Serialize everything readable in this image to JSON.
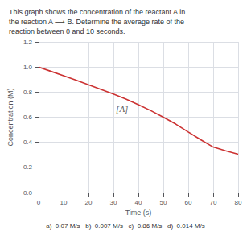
{
  "chart_data": {
    "type": "line",
    "title": "This graph shows the concentration of the reactant A in\nthe reaction A ⟶ B. Determine the average rate of the\nreaction between 0 and 10 seconds.",
    "footer": "a)  0.07 M/s   b)  0.007 M/s   c)  0.86 M/s   d)  0.014 M/s",
    "xlabel": "Time (s)",
    "ylabel": "Concentration (M)",
    "x": [
      0,
      5,
      10,
      15,
      20,
      25,
      30,
      35,
      40,
      45,
      50,
      55,
      60,
      65,
      70,
      75,
      80
    ],
    "values": [
      1.0,
      0.965,
      0.93,
      0.895,
      0.858,
      0.822,
      0.784,
      0.745,
      0.7,
      0.652,
      0.6,
      0.545,
      0.482,
      0.42,
      0.362,
      0.332,
      0.305
    ],
    "color": "#cc3333",
    "xlim": [
      0,
      80
    ],
    "ylim": [
      0,
      1.2
    ],
    "xticks": [
      0,
      10,
      20,
      30,
      40,
      50,
      60,
      70,
      80
    ],
    "yticks": [
      {
        "value": 0,
        "label": "0.0"
      },
      0.2,
      0.4,
      0.6,
      0.8,
      {
        "value": 1.0,
        "label": "1.0"
      },
      1.2
    ],
    "grid": true,
    "annotations": [
      {
        "text": "[A]",
        "x": 31,
        "y": 0.67
      }
    ]
  }
}
